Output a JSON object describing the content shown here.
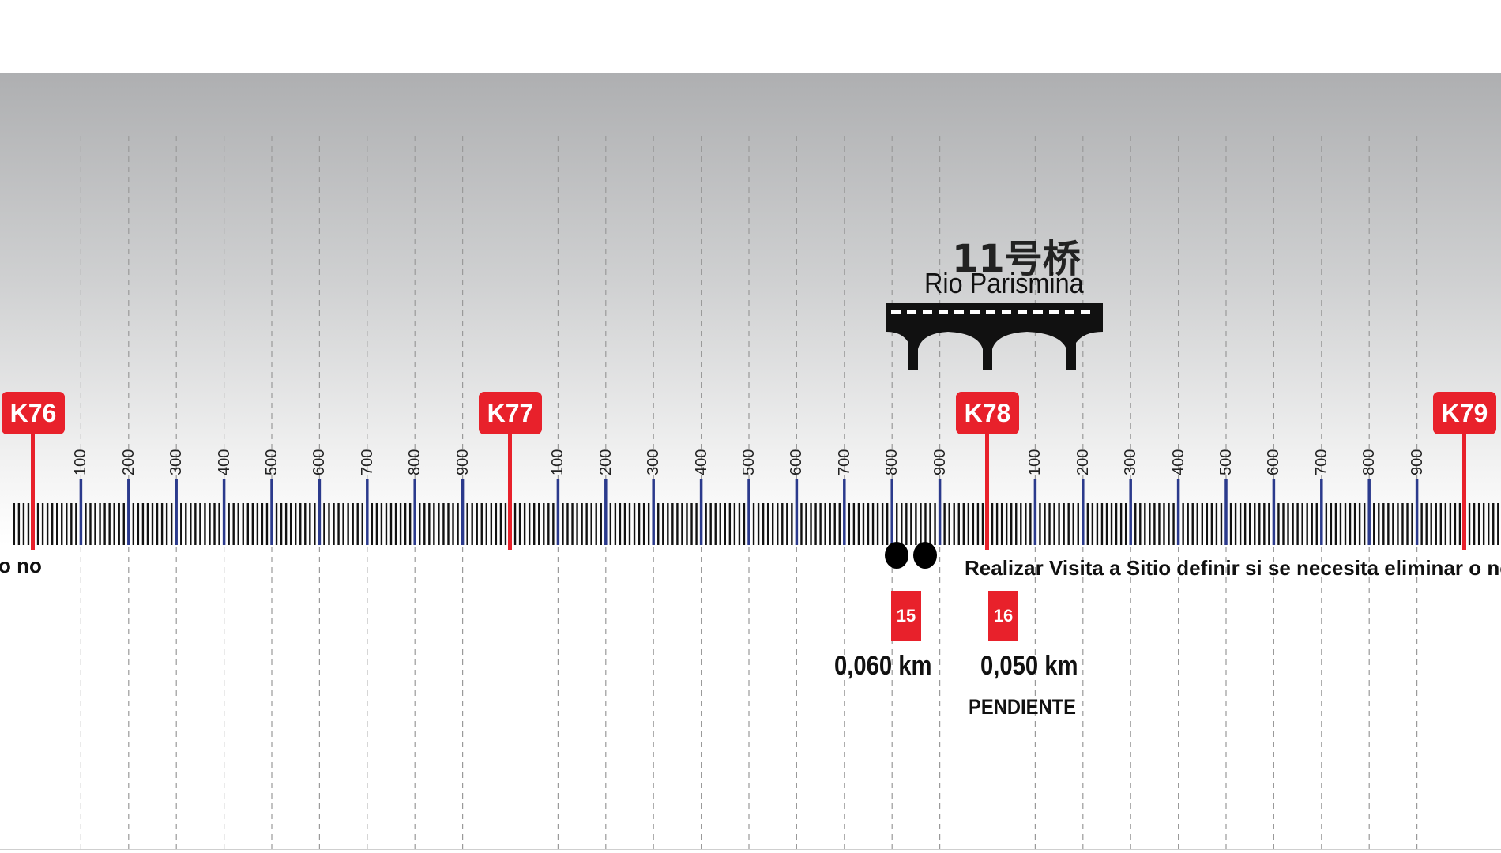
{
  "kilometer_posts": [
    {
      "label": "K76",
      "index": 0
    },
    {
      "label": "K77",
      "index": 10
    },
    {
      "label": "K78",
      "index": 20
    },
    {
      "label": "K79",
      "index": 30
    }
  ],
  "subdivision_labels": [
    "100",
    "200",
    "300",
    "400",
    "500",
    "600",
    "700",
    "800",
    "900"
  ],
  "bridge": {
    "name_chinese": "11号桥",
    "name_spanish": "Rio Parismina",
    "icon": "bridge-icon"
  },
  "notes": {
    "left_fragment": "o no",
    "site_visit": "Realizar Visita a Sitio definir si se necesita eliminar o no"
  },
  "segments": [
    {
      "number": "15",
      "distance": "0,060 km",
      "status": ""
    },
    {
      "number": "16",
      "distance": "0,050 km",
      "status": "PENDIENTE"
    }
  ],
  "markers": [
    {
      "icon": "black-dot-icon",
      "index": 18.1
    },
    {
      "icon": "black-dot-icon",
      "index": 18.7
    }
  ],
  "colors": {
    "post_red": "#e8212b",
    "major_tick_blue": "#2b3a8c",
    "minor_tick_black": "#111111"
  }
}
